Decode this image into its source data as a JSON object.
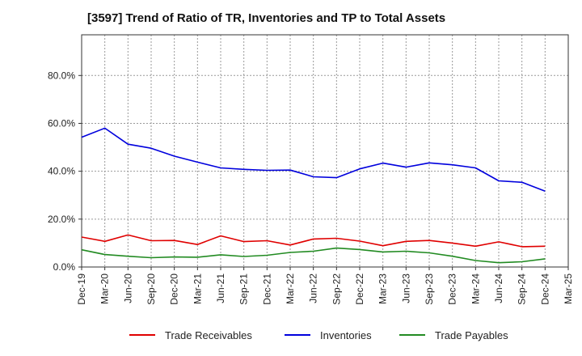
{
  "chart_data": {
    "type": "line",
    "title": "[3597]  Trend of Ratio of TR, Inventories and TP to Total Assets",
    "xlabel": "",
    "ylabel": "",
    "x_ticks": [
      "Dec-19",
      "Mar-20",
      "Jun-20",
      "Sep-20",
      "Dec-20",
      "Mar-21",
      "Jun-21",
      "Sep-21",
      "Dec-21",
      "Mar-22",
      "Jun-22",
      "Sep-22",
      "Dec-22",
      "Mar-23",
      "Jun-23",
      "Sep-23",
      "Dec-23",
      "Mar-24",
      "Jun-24",
      "Sep-24",
      "Dec-24",
      "Mar-25"
    ],
    "x": [
      "Dec-19",
      "Mar-20",
      "Jun-20",
      "Sep-20",
      "Dec-20",
      "Mar-21",
      "Jun-21",
      "Sep-21",
      "Dec-21",
      "Mar-22",
      "Jun-22",
      "Sep-22",
      "Dec-22",
      "Mar-23",
      "Jun-23",
      "Sep-23",
      "Dec-23",
      "Mar-24",
      "Jun-24",
      "Sep-24",
      "Dec-24"
    ],
    "y_ticks": [
      "0.0%",
      "20.0%",
      "40.0%",
      "60.0%",
      "80.0%"
    ],
    "ylim": [
      0,
      97
    ],
    "grid": true,
    "legend_position": "bottom",
    "series": [
      {
        "name": "Trade Receivables",
        "color": "#e00000",
        "values": [
          12.5,
          10.7,
          13.4,
          11.0,
          11.1,
          9.4,
          13.0,
          10.6,
          11.0,
          9.2,
          11.7,
          12.0,
          10.8,
          8.9,
          10.7,
          11.1,
          10.0,
          8.7,
          10.5,
          8.5,
          8.7
        ]
      },
      {
        "name": "Inventories",
        "color": "#0000dd",
        "values": [
          54.2,
          58.0,
          51.3,
          49.6,
          46.3,
          43.8,
          41.4,
          40.8,
          40.4,
          40.5,
          37.7,
          37.3,
          41.0,
          43.4,
          41.7,
          43.5,
          42.7,
          41.4,
          36.0,
          35.4,
          31.7
        ]
      },
      {
        "name": "Trade Payables",
        "color": "#228b22",
        "values": [
          7.2,
          5.2,
          4.5,
          3.9,
          4.2,
          4.1,
          5.1,
          4.4,
          4.9,
          6.1,
          6.6,
          7.9,
          7.3,
          6.3,
          6.6,
          5.9,
          4.5,
          2.7,
          1.8,
          2.2,
          3.4
        ]
      }
    ]
  }
}
